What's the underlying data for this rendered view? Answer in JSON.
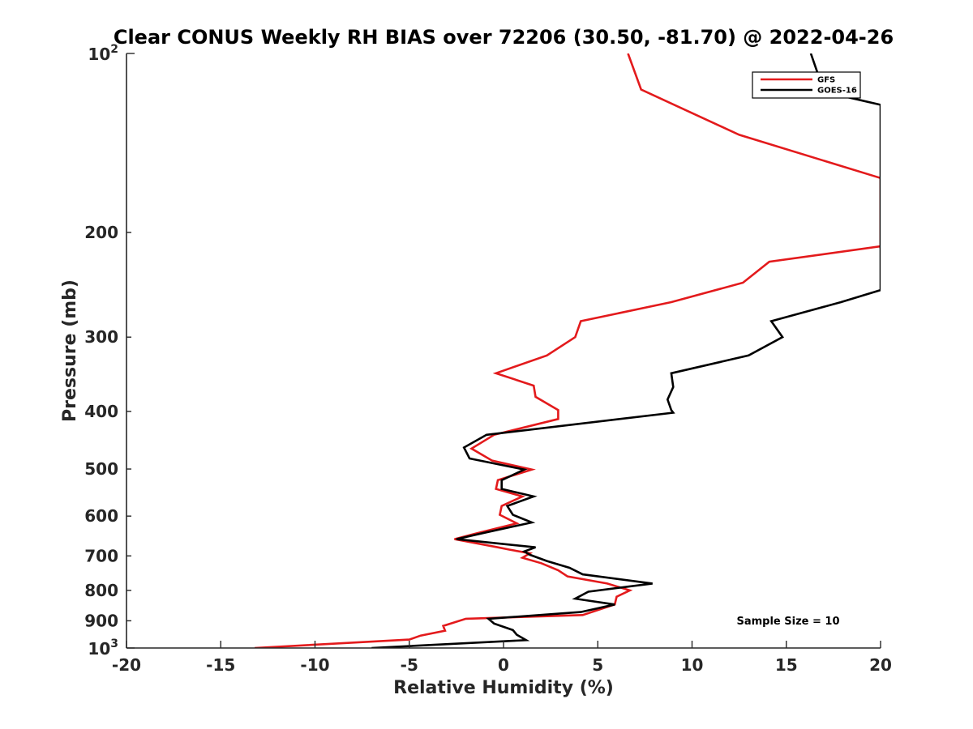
{
  "chart_data": {
    "type": "line",
    "title": "Clear CONUS Weekly RH BIAS over 72206 (30.50, -81.70) @ 2022-04-26",
    "xlabel": "Relative Humidity (%)",
    "ylabel": "Pressure (mb)",
    "xlim": [
      -20,
      20
    ],
    "ylim": [
      100,
      1000
    ],
    "yscale": "log",
    "y_reversed": true,
    "grid": false,
    "legend_position": "top-right",
    "x_ticks": [
      -20,
      -15,
      -10,
      -5,
      0,
      5,
      10,
      15,
      20
    ],
    "x_tick_labels": [
      "-20",
      "-15",
      "-10",
      "-5",
      "0",
      "5",
      "10",
      "15",
      "20"
    ],
    "y_ticks_major": [
      100,
      1000
    ],
    "y_tick_labels_major": [
      {
        "base": "10",
        "exp": "2"
      },
      {
        "base": "10",
        "exp": "3"
      }
    ],
    "y_ticks_minor": [
      200,
      300,
      400,
      500,
      600,
      700,
      800,
      900
    ],
    "y_tick_labels_minor": [
      "200",
      "300",
      "400",
      "500",
      "600",
      "700",
      "800",
      "900"
    ],
    "annotation": "Sample Size = 10",
    "series": [
      {
        "name": "GFS",
        "color": "#e31a1c",
        "points": [
          [
            6.6,
            100
          ],
          [
            7.3,
            115
          ],
          [
            12.5,
            137
          ],
          [
            20,
            162
          ],
          [
            20,
            212
          ],
          [
            20.5,
            210
          ],
          [
            14.1,
            224
          ],
          [
            12.7,
            243
          ],
          [
            8.9,
            262
          ],
          [
            4.1,
            282
          ],
          [
            3.8,
            300
          ],
          [
            2.3,
            322
          ],
          [
            -0.4,
            345
          ],
          [
            1.6,
            362
          ],
          [
            1.7,
            378
          ],
          [
            2.9,
            398
          ],
          [
            2.9,
            412
          ],
          [
            -0.5,
            438
          ],
          [
            -1.7,
            462
          ],
          [
            -0.6,
            484
          ],
          [
            1.5,
            501
          ],
          [
            -0.3,
            522
          ],
          [
            -0.4,
            540
          ],
          [
            1.0,
            556
          ],
          [
            -0.1,
            577
          ],
          [
            -0.2,
            597
          ],
          [
            0.7,
            617
          ],
          [
            -1.4,
            641
          ],
          [
            -2.6,
            656
          ],
          [
            -0.3,
            677
          ],
          [
            0.3,
            683
          ],
          [
            1.4,
            693
          ],
          [
            1.0,
            705
          ],
          [
            2.0,
            720
          ],
          [
            2.9,
            740
          ],
          [
            3.4,
            758
          ],
          [
            5.5,
            779
          ],
          [
            6.7,
            800
          ],
          [
            6.0,
            820
          ],
          [
            5.9,
            845
          ],
          [
            4.2,
            880
          ],
          [
            -2.0,
            893
          ],
          [
            -3.2,
            918
          ],
          [
            -3.1,
            935
          ],
          [
            -4.4,
            953
          ],
          [
            -5.0,
            968
          ],
          [
            -13.2,
            1000
          ]
        ]
      },
      {
        "name": "GOES-16",
        "color": "#000000",
        "points": [
          [
            16.3,
            100
          ],
          [
            17.0,
            116
          ],
          [
            20,
            122
          ],
          [
            20,
            250
          ],
          [
            17.9,
            262
          ],
          [
            14.2,
            282
          ],
          [
            14.8,
            300
          ],
          [
            13.0,
            322
          ],
          [
            8.9,
            345
          ],
          [
            9.0,
            364
          ],
          [
            8.7,
            382
          ],
          [
            8.9,
            398
          ],
          [
            9.0,
            402
          ],
          [
            -0.9,
            438
          ],
          [
            -2.1,
            460
          ],
          [
            -1.8,
            480
          ],
          [
            1.1,
            501
          ],
          [
            -0.1,
            522
          ],
          [
            -0.1,
            540
          ],
          [
            1.6,
            556
          ],
          [
            0.2,
            577
          ],
          [
            0.5,
            597
          ],
          [
            1.5,
            615
          ],
          [
            -1.1,
            641
          ],
          [
            -2.5,
            656
          ],
          [
            1.7,
            677
          ],
          [
            1.1,
            688
          ],
          [
            1.4,
            697
          ],
          [
            2.3,
            714
          ],
          [
            3.5,
            733
          ],
          [
            4.2,
            752
          ],
          [
            7.9,
            779
          ],
          [
            4.5,
            804
          ],
          [
            3.8,
            826
          ],
          [
            5.9,
            845
          ],
          [
            4.1,
            870
          ],
          [
            -0.8,
            893
          ],
          [
            -0.5,
            910
          ],
          [
            0.5,
            933
          ],
          [
            0.7,
            950
          ],
          [
            1.2,
            970
          ],
          [
            -7.0,
            1000
          ]
        ]
      }
    ]
  }
}
